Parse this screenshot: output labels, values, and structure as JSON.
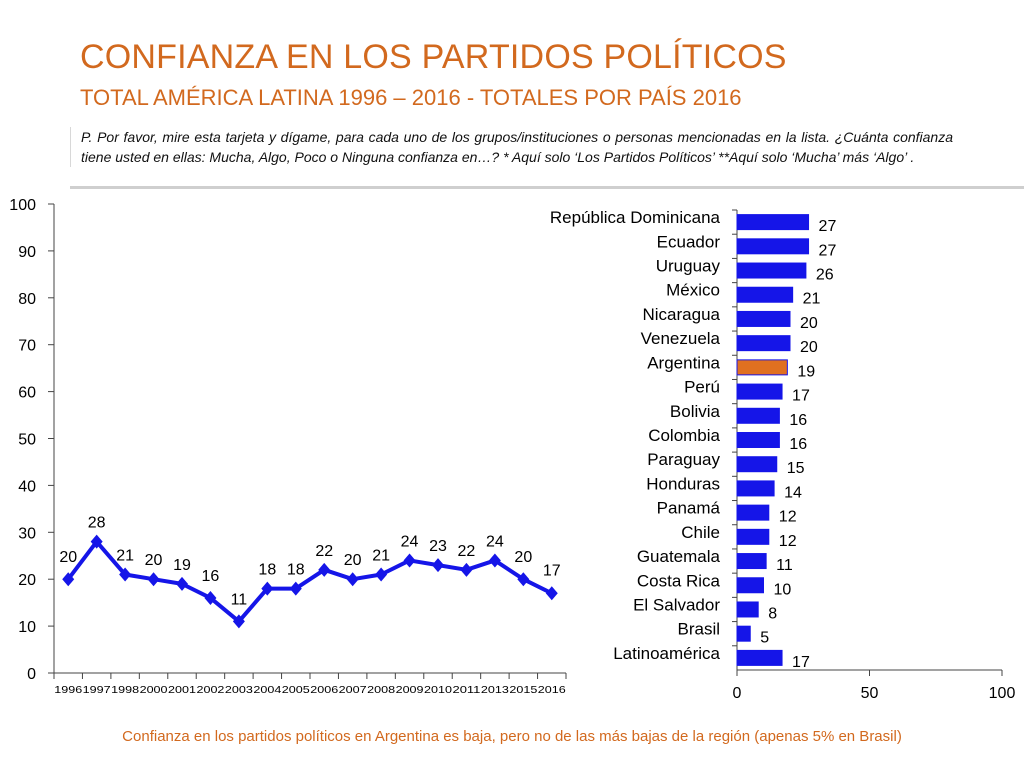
{
  "header": {
    "title": "CONFIANZA EN LOS PARTIDOS POLÍTICOS",
    "subtitle": "TOTAL AMÉRICA LATINA 1996 – 2016 - TOTALES POR PAÍS 2016"
  },
  "question": "P. Por favor, mire esta tarjeta y dígame, para cada uno de los grupos/instituciones o personas mencionadas en la lista. ¿Cuánta confianza tiene usted en ellas: Mucha, Algo, Poco o Ninguna confianza en…? * Aquí solo ‘Los Partidos Políticos’ **Aquí solo ‘Mucha’ más ‘Algo’ .",
  "footer": "Confianza en los partidos políticos en Argentina es baja, pero no de las más bajas de la región (apenas 5% en Brasil)",
  "colors": {
    "accent": "#D2691E",
    "series": "#1515E8",
    "highlight": "#E07020"
  },
  "chart_data": [
    {
      "type": "line",
      "title": "",
      "categories": [
        "1996",
        "1997",
        "1998",
        "2000",
        "2001",
        "2002",
        "2003",
        "2004",
        "2005",
        "2006",
        "2007",
        "2008",
        "2009",
        "2010",
        "2011",
        "2013",
        "2015",
        "2016"
      ],
      "values": [
        20,
        28,
        21,
        20,
        19,
        16,
        11,
        18,
        18,
        22,
        20,
        21,
        24,
        23,
        22,
        24,
        20,
        17
      ],
      "ylim": [
        0,
        100
      ],
      "yticks": [
        0,
        10,
        20,
        30,
        40,
        50,
        60,
        70,
        80,
        90,
        100
      ],
      "xlabel": "",
      "ylabel": "",
      "grid": false
    },
    {
      "type": "bar",
      "orientation": "horizontal",
      "categories": [
        "República Dominicana",
        "Ecuador",
        "Uruguay",
        "México",
        "Nicaragua",
        "Venezuela",
        "Argentina",
        "Perú",
        "Bolivia",
        "Colombia",
        "Paraguay",
        "Honduras",
        "Panamá",
        "Chile",
        "Guatemala",
        "Costa Rica",
        "El Salvador",
        "Brasil",
        "Latinoamérica"
      ],
      "values": [
        27,
        27,
        26,
        21,
        20,
        20,
        19,
        17,
        16,
        16,
        15,
        14,
        12,
        12,
        11,
        10,
        8,
        5,
        17
      ],
      "highlight": "Argentina",
      "xlim": [
        0,
        100
      ],
      "xticks": [
        0,
        50,
        100
      ],
      "grid": false
    }
  ]
}
